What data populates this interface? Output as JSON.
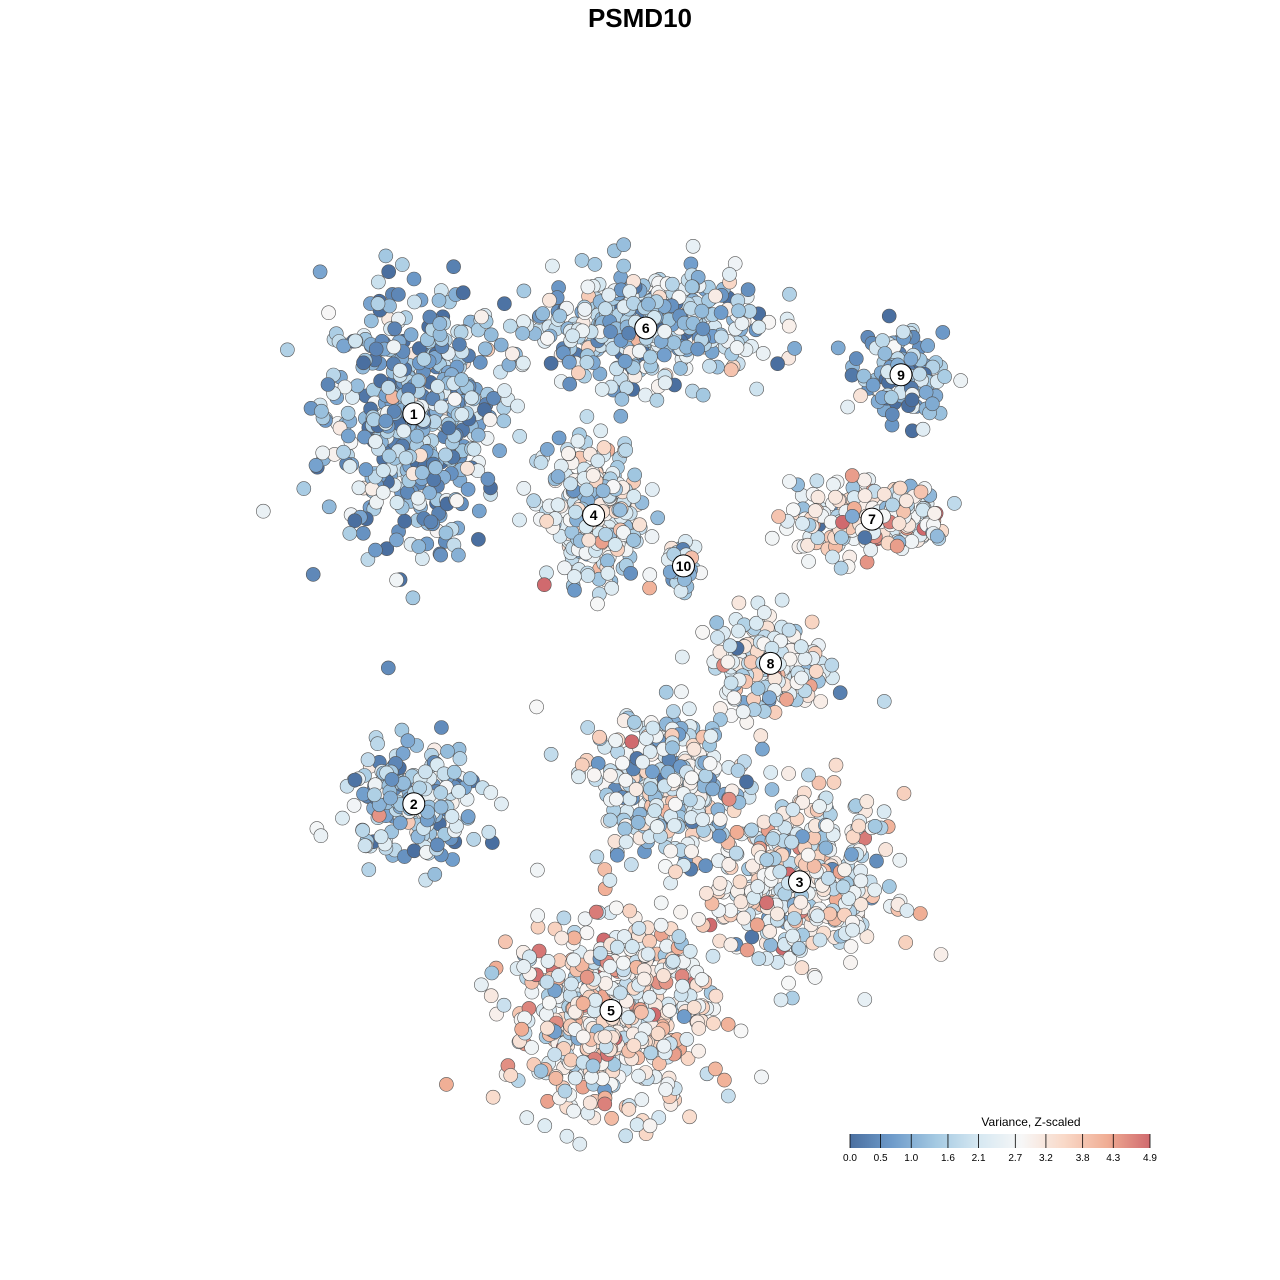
{
  "chart_data": {
    "type": "scatter",
    "title": "PSMD10",
    "xlabel": "",
    "ylabel": "",
    "grid": false,
    "legend": {
      "title": "Variance, Z-scaled",
      "placement": "bottom-right",
      "ticks": [
        "0.0",
        "0.5",
        "1.0",
        "1.6",
        "2.1",
        "2.7",
        "3.2",
        "3.8",
        "4.3",
        "4.9"
      ],
      "range": [
        0.0,
        4.9
      ],
      "colors": [
        "#4a6fa0",
        "#6f9ccb",
        "#a4c9e2",
        "#d6e8f2",
        "#f7f7f7",
        "#f9d9c8",
        "#f0ad94",
        "#d06a6e"
      ]
    },
    "clusters": [
      {
        "label": "1",
        "center": [
          -0.78,
          0.58
        ],
        "spread": [
          0.34,
          0.36
        ],
        "mean": 1.2,
        "n": 520
      },
      {
        "label": "6",
        "center": [
          0.02,
          0.8
        ],
        "spread": [
          0.42,
          0.16
        ],
        "mean": 1.6,
        "n": 420
      },
      {
        "label": "9",
        "center": [
          0.9,
          0.68
        ],
        "spread": [
          0.16,
          0.12
        ],
        "mean": 0.9,
        "n": 120
      },
      {
        "label": "7",
        "center": [
          0.8,
          0.31
        ],
        "spread": [
          0.3,
          0.1
        ],
        "mean": 2.8,
        "n": 260
      },
      {
        "label": "4",
        "center": [
          -0.16,
          0.32
        ],
        "spread": [
          0.18,
          0.2
        ],
        "mean": 2.2,
        "n": 260
      },
      {
        "label": "10",
        "center": [
          0.15,
          0.19
        ],
        "spread": [
          0.06,
          0.07
        ],
        "mean": 1.9,
        "n": 40
      },
      {
        "label": "8",
        "center": [
          0.45,
          -0.06
        ],
        "spread": [
          0.22,
          0.14
        ],
        "mean": 2.4,
        "n": 180
      },
      {
        "label": "2",
        "center": [
          -0.78,
          -0.42
        ],
        "spread": [
          0.26,
          0.16
        ],
        "mean": 1.5,
        "n": 200
      },
      {
        "label": "3",
        "center": [
          0.55,
          -0.62
        ],
        "spread": [
          0.34,
          0.24
        ],
        "mean": 2.6,
        "n": 380
      },
      {
        "label": "5",
        "center": [
          -0.1,
          -0.95
        ],
        "spread": [
          0.38,
          0.28
        ],
        "mean": 2.9,
        "n": 540
      },
      {
        "label": "",
        "center": [
          0.1,
          -0.38
        ],
        "spread": [
          0.3,
          0.22
        ],
        "mean": 2.0,
        "n": 320
      }
    ]
  }
}
